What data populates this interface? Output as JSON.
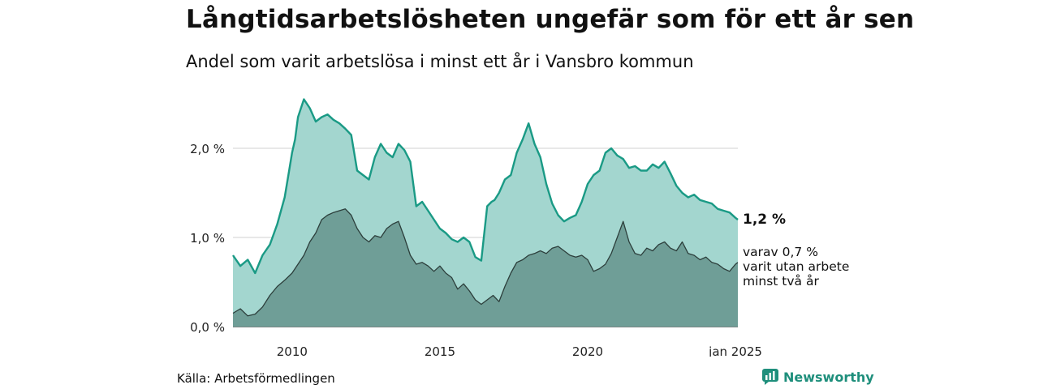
{
  "header": {
    "title": "Långtidsarbetslösheten ungefär som för ett år sen",
    "subtitle": "Andel som varit arbetslösa i minst ett år i Vansbro kommun"
  },
  "footer": {
    "source": "Källa: Arbetsförmedlingen",
    "brand": "Newsworthy"
  },
  "colors": {
    "upper_fill": "#a3d6cf",
    "upper_line": "#1a9a85",
    "lower_fill": "#6f9e97",
    "lower_line": "#2c3e3b",
    "grid": "#d9d9d9"
  },
  "chart_data": {
    "type": "area",
    "x_unit": "year (decimal)",
    "xlim": [
      2008.0,
      2025.08
    ],
    "ylim": [
      0,
      2.8
    ],
    "y_ticks": [
      {
        "value": 0,
        "label": "0,0 %"
      },
      {
        "value": 1,
        "label": "1,0 %"
      },
      {
        "value": 2,
        "label": "2,0 %"
      }
    ],
    "x_ticks": [
      {
        "value": 2010,
        "label": "2010"
      },
      {
        "value": 2015,
        "label": "2015"
      },
      {
        "value": 2020,
        "label": "2020"
      },
      {
        "value": 2025,
        "label": "jan 2025"
      }
    ],
    "grid": true,
    "legend": "end labels at right",
    "end_labels": {
      "main": "1,2 %",
      "sub_lines": [
        "varav 0,7 %",
        "varit utan arbete",
        "minst två år"
      ]
    },
    "series": [
      {
        "role": "minst ett år",
        "x": [
          2008.0,
          2008.25,
          2008.5,
          2008.75,
          2009.0,
          2009.25,
          2009.5,
          2009.75,
          2009.9,
          2010.0,
          2010.1,
          2010.2,
          2010.4,
          2010.6,
          2010.8,
          2011.0,
          2011.2,
          2011.4,
          2011.6,
          2011.8,
          2012.0,
          2012.2,
          2012.4,
          2012.6,
          2012.8,
          2013.0,
          2013.2,
          2013.4,
          2013.6,
          2013.8,
          2014.0,
          2014.2,
          2014.4,
          2014.6,
          2014.8,
          2015.0,
          2015.2,
          2015.4,
          2015.6,
          2015.8,
          2016.0,
          2016.2,
          2016.4,
          2016.6,
          2016.75,
          2016.85,
          2017.0,
          2017.2,
          2017.4,
          2017.6,
          2017.8,
          2018.0,
          2018.2,
          2018.4,
          2018.6,
          2018.8,
          2019.0,
          2019.2,
          2019.4,
          2019.6,
          2019.8,
          2020.0,
          2020.2,
          2020.4,
          2020.6,
          2020.8,
          2021.0,
          2021.2,
          2021.4,
          2021.6,
          2021.8,
          2022.0,
          2022.2,
          2022.4,
          2022.6,
          2022.8,
          2023.0,
          2023.2,
          2023.4,
          2023.6,
          2023.8,
          2024.0,
          2024.2,
          2024.4,
          2024.6,
          2024.8,
          2025.0,
          2025.08
        ],
        "values": [
          0.8,
          0.68,
          0.75,
          0.6,
          0.8,
          0.92,
          1.15,
          1.45,
          1.75,
          1.95,
          2.1,
          2.35,
          2.55,
          2.45,
          2.3,
          2.35,
          2.38,
          2.32,
          2.28,
          2.22,
          2.15,
          1.75,
          1.7,
          1.65,
          1.9,
          2.05,
          1.95,
          1.9,
          2.05,
          1.98,
          1.85,
          1.35,
          1.4,
          1.3,
          1.2,
          1.1,
          1.05,
          0.98,
          0.95,
          1.0,
          0.95,
          0.78,
          0.74,
          1.35,
          1.4,
          1.42,
          1.5,
          1.65,
          1.7,
          1.95,
          2.1,
          2.28,
          2.05,
          1.9,
          1.6,
          1.38,
          1.25,
          1.18,
          1.22,
          1.25,
          1.4,
          1.6,
          1.7,
          1.75,
          1.95,
          2.0,
          1.92,
          1.88,
          1.78,
          1.8,
          1.75,
          1.75,
          1.82,
          1.78,
          1.85,
          1.72,
          1.58,
          1.5,
          1.45,
          1.48,
          1.42,
          1.4,
          1.38,
          1.32,
          1.3,
          1.28,
          1.22,
          1.2
        ]
      },
      {
        "role": "varav minst två år",
        "x": [
          2008.0,
          2008.25,
          2008.5,
          2008.75,
          2009.0,
          2009.25,
          2009.5,
          2009.75,
          2010.0,
          2010.2,
          2010.4,
          2010.6,
          2010.8,
          2011.0,
          2011.2,
          2011.4,
          2011.6,
          2011.8,
          2012.0,
          2012.2,
          2012.4,
          2012.6,
          2012.8,
          2013.0,
          2013.2,
          2013.4,
          2013.6,
          2013.8,
          2014.0,
          2014.2,
          2014.4,
          2014.6,
          2014.8,
          2015.0,
          2015.2,
          2015.4,
          2015.6,
          2015.8,
          2016.0,
          2016.2,
          2016.4,
          2016.6,
          2016.8,
          2017.0,
          2017.2,
          2017.4,
          2017.6,
          2017.8,
          2018.0,
          2018.2,
          2018.4,
          2018.6,
          2018.8,
          2019.0,
          2019.2,
          2019.4,
          2019.6,
          2019.8,
          2020.0,
          2020.2,
          2020.4,
          2020.6,
          2020.8,
          2021.0,
          2021.2,
          2021.4,
          2021.6,
          2021.8,
          2022.0,
          2022.2,
          2022.4,
          2022.6,
          2022.8,
          2023.0,
          2023.2,
          2023.4,
          2023.6,
          2023.8,
          2024.0,
          2024.2,
          2024.4,
          2024.6,
          2024.8,
          2025.0,
          2025.08
        ],
        "values": [
          0.15,
          0.2,
          0.12,
          0.14,
          0.22,
          0.35,
          0.45,
          0.52,
          0.6,
          0.7,
          0.8,
          0.95,
          1.05,
          1.2,
          1.25,
          1.28,
          1.3,
          1.32,
          1.25,
          1.1,
          1.0,
          0.95,
          1.02,
          1.0,
          1.1,
          1.15,
          1.18,
          1.0,
          0.8,
          0.7,
          0.72,
          0.68,
          0.62,
          0.68,
          0.6,
          0.55,
          0.42,
          0.48,
          0.4,
          0.3,
          0.25,
          0.3,
          0.35,
          0.28,
          0.45,
          0.6,
          0.72,
          0.75,
          0.8,
          0.82,
          0.85,
          0.82,
          0.88,
          0.9,
          0.85,
          0.8,
          0.78,
          0.8,
          0.75,
          0.62,
          0.65,
          0.7,
          0.82,
          1.0,
          1.18,
          0.95,
          0.82,
          0.8,
          0.88,
          0.85,
          0.92,
          0.95,
          0.88,
          0.85,
          0.95,
          0.82,
          0.8,
          0.75,
          0.78,
          0.72,
          0.7,
          0.65,
          0.62,
          0.7,
          0.72
        ]
      }
    ]
  }
}
